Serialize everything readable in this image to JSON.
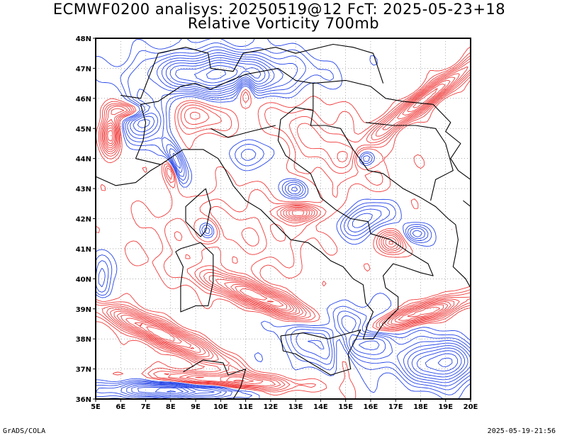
{
  "header": {
    "line1": "ECMWF0200 analisys: 20250519@12 FcT: 2025-05-23+18",
    "line2": "Relative Vorticity 700mb"
  },
  "footer": {
    "left": "GrADS/COLA",
    "right": "2025-05-19-21:56"
  },
  "map": {
    "lon_range": [
      5,
      20
    ],
    "lat_range": [
      36,
      48
    ],
    "lon_labels": [
      "5E",
      "6E",
      "7E",
      "8E",
      "9E",
      "10E",
      "11E",
      "12E",
      "13E",
      "14E",
      "15E",
      "16E",
      "17E",
      "18E",
      "19E",
      "20E"
    ],
    "lat_labels": [
      "36N",
      "37N",
      "38N",
      "39N",
      "40N",
      "41N",
      "42N",
      "43N",
      "44N",
      "45N",
      "46N",
      "47N",
      "48N"
    ],
    "colors": {
      "positive": "#f03a3a",
      "negative": "#2444e8",
      "coast": "#000000",
      "grid": "#7a7a7a"
    },
    "field": "Relative Vorticity 700mb"
  }
}
